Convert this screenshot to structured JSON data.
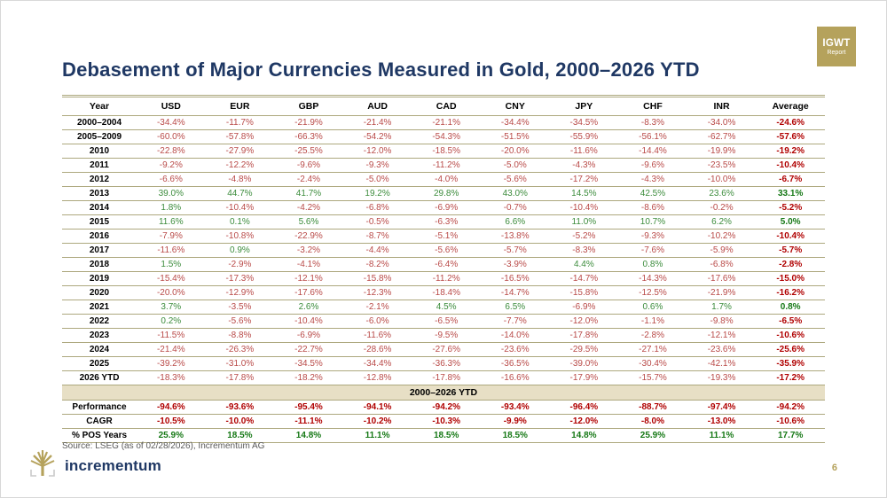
{
  "badge": {
    "line1": "IGWT",
    "line2": "Report"
  },
  "title": "Debasement of Major Currencies Measured in Gold, 2000–2026 YTD",
  "table": {
    "headers": [
      "Year",
      "USD",
      "EUR",
      "GBP",
      "AUD",
      "CAD",
      "CNY",
      "JPY",
      "CHF",
      "INR",
      "Average"
    ],
    "rows": [
      {
        "label": "2000–2004",
        "values": [
          "-34.4%",
          "-11.7%",
          "-21.9%",
          "-21.4%",
          "-21.1%",
          "-34.4%",
          "-34.5%",
          "-8.3%",
          "-34.0%",
          "-24.6%"
        ]
      },
      {
        "label": "2005–2009",
        "values": [
          "-60.0%",
          "-57.8%",
          "-66.3%",
          "-54.2%",
          "-54.3%",
          "-51.5%",
          "-55.9%",
          "-56.1%",
          "-62.7%",
          "-57.6%"
        ]
      },
      {
        "label": "2010",
        "values": [
          "-22.8%",
          "-27.9%",
          "-25.5%",
          "-12.0%",
          "-18.5%",
          "-20.0%",
          "-11.6%",
          "-14.4%",
          "-19.9%",
          "-19.2%"
        ]
      },
      {
        "label": "2011",
        "values": [
          "-9.2%",
          "-12.2%",
          "-9.6%",
          "-9.3%",
          "-11.2%",
          "-5.0%",
          "-4.3%",
          "-9.6%",
          "-23.5%",
          "-10.4%"
        ]
      },
      {
        "label": "2012",
        "values": [
          "-6.6%",
          "-4.8%",
          "-2.4%",
          "-5.0%",
          "-4.0%",
          "-5.6%",
          "-17.2%",
          "-4.3%",
          "-10.0%",
          "-6.7%"
        ]
      },
      {
        "label": "2013",
        "values": [
          "39.0%",
          "44.7%",
          "41.7%",
          "19.2%",
          "29.8%",
          "43.0%",
          "14.5%",
          "42.5%",
          "23.6%",
          "33.1%"
        ]
      },
      {
        "label": "2014",
        "values": [
          "1.8%",
          "-10.4%",
          "-4.2%",
          "-6.8%",
          "-6.9%",
          "-0.7%",
          "-10.4%",
          "-8.6%",
          "-0.2%",
          "-5.2%"
        ]
      },
      {
        "label": "2015",
        "values": [
          "11.6%",
          "0.1%",
          "5.6%",
          "-0.5%",
          "-6.3%",
          "6.6%",
          "11.0%",
          "10.7%",
          "6.2%",
          "5.0%"
        ]
      },
      {
        "label": "2016",
        "values": [
          "-7.9%",
          "-10.8%",
          "-22.9%",
          "-8.7%",
          "-5.1%",
          "-13.8%",
          "-5.2%",
          "-9.3%",
          "-10.2%",
          "-10.4%"
        ]
      },
      {
        "label": "2017",
        "values": [
          "-11.6%",
          "0.9%",
          "-3.2%",
          "-4.4%",
          "-5.6%",
          "-5.7%",
          "-8.3%",
          "-7.6%",
          "-5.9%",
          "-5.7%"
        ]
      },
      {
        "label": "2018",
        "values": [
          "1.5%",
          "-2.9%",
          "-4.1%",
          "-8.2%",
          "-6.4%",
          "-3.9%",
          "4.4%",
          "0.8%",
          "-6.8%",
          "-2.8%"
        ]
      },
      {
        "label": "2019",
        "values": [
          "-15.4%",
          "-17.3%",
          "-12.1%",
          "-15.8%",
          "-11.2%",
          "-16.5%",
          "-14.7%",
          "-14.3%",
          "-17.6%",
          "-15.0%"
        ]
      },
      {
        "label": "2020",
        "values": [
          "-20.0%",
          "-12.9%",
          "-17.6%",
          "-12.3%",
          "-18.4%",
          "-14.7%",
          "-15.8%",
          "-12.5%",
          "-21.9%",
          "-16.2%"
        ]
      },
      {
        "label": "2021",
        "values": [
          "3.7%",
          "-3.5%",
          "2.6%",
          "-2.1%",
          "4.5%",
          "6.5%",
          "-6.9%",
          "0.6%",
          "1.7%",
          "0.8%"
        ]
      },
      {
        "label": "2022",
        "values": [
          "0.2%",
          "-5.6%",
          "-10.4%",
          "-6.0%",
          "-6.5%",
          "-7.7%",
          "-12.0%",
          "-1.1%",
          "-9.8%",
          "-6.5%"
        ]
      },
      {
        "label": "2023",
        "values": [
          "-11.5%",
          "-8.8%",
          "-6.9%",
          "-11.6%",
          "-9.5%",
          "-14.0%",
          "-17.8%",
          "-2.8%",
          "-12.1%",
          "-10.6%"
        ]
      },
      {
        "label": "2024",
        "values": [
          "-21.4%",
          "-26.3%",
          "-22.7%",
          "-28.6%",
          "-27.6%",
          "-23.6%",
          "-29.5%",
          "-27.1%",
          "-23.6%",
          "-25.6%"
        ]
      },
      {
        "label": "2025",
        "values": [
          "-39.2%",
          "-31.0%",
          "-34.5%",
          "-34.4%",
          "-36.3%",
          "-36.5%",
          "-39.0%",
          "-30.4%",
          "-42.1%",
          "-35.9%"
        ]
      },
      {
        "label": "2026 YTD",
        "values": [
          "-18.3%",
          "-17.8%",
          "-18.2%",
          "-12.8%",
          "-17.8%",
          "-16.6%",
          "-17.9%",
          "-15.7%",
          "-19.3%",
          "-17.2%"
        ]
      }
    ],
    "band_label": "2000–2026 YTD",
    "summary_rows": [
      {
        "label": "Performance",
        "values": [
          "-94.6%",
          "-93.6%",
          "-95.4%",
          "-94.1%",
          "-94.2%",
          "-93.4%",
          "-96.4%",
          "-88.7%",
          "-97.4%",
          "-94.2%"
        ]
      },
      {
        "label": "CAGR",
        "values": [
          "-10.5%",
          "-10.0%",
          "-11.1%",
          "-10.2%",
          "-10.3%",
          "-9.9%",
          "-12.0%",
          "-8.0%",
          "-13.0%",
          "-10.6%"
        ]
      },
      {
        "label": "% POS Years",
        "values": [
          "25.9%",
          "18.5%",
          "14.8%",
          "11.1%",
          "18.5%",
          "18.5%",
          "14.8%",
          "25.9%",
          "11.1%",
          "17.7%"
        ]
      }
    ]
  },
  "footer": {
    "source": "Source: LSEG (as of 02/28/2026), Incrementum AG",
    "logo_text": "incrementum",
    "page_number": "6"
  },
  "colors": {
    "title": "#1F3864",
    "negative": "#B94A48",
    "positive": "#3C8C3C",
    "negative_bold": "#B00000",
    "positive_bold": "#157815",
    "accent_gold": "#B5A25C",
    "band_bg": "#E7DFC5",
    "rule": "#ADA87E"
  }
}
